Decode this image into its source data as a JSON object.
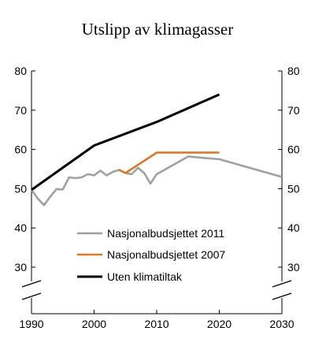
{
  "chart_data": {
    "type": "line",
    "title": "Utslipp av klimagasser",
    "xlabel": "",
    "ylabel": "",
    "xlim": [
      1990,
      2030
    ],
    "ylim": [
      30,
      80
    ],
    "x_ticks": [
      "1990",
      "2000",
      "2010",
      "2020",
      "2030"
    ],
    "y_ticks": [
      "30",
      "40",
      "50",
      "60",
      "70",
      "80"
    ],
    "axis_break": "lower y-axis break below 30 on both sides",
    "grid": false,
    "legend_position": "lower-center",
    "series": [
      {
        "name": "Nasjonalbudsjettet 2011",
        "color": "#a0a0a0",
        "x": [
          1990,
          1991,
          1992,
          1993,
          1994,
          1995,
          1996,
          1997,
          1998,
          1999,
          2000,
          2001,
          2002,
          2003,
          2004,
          2005,
          2006,
          2007,
          2008,
          2009,
          2010,
          2015,
          2020,
          2030
        ],
        "y": [
          49.7,
          47.5,
          45.8,
          48.0,
          49.9,
          49.8,
          52.9,
          52.7,
          52.9,
          53.7,
          53.4,
          54.6,
          53.4,
          54.3,
          54.8,
          54.0,
          53.7,
          55.3,
          54.0,
          51.3,
          53.7,
          58.2,
          57.5,
          53.0
        ]
      },
      {
        "name": "Nasjonalbudsjettet 2007",
        "color": "#d97a2b",
        "x": [
          2004,
          2005,
          2010,
          2020
        ],
        "y": [
          54.8,
          54.0,
          59.2,
          59.2
        ]
      },
      {
        "name": "Uten klimatiltak",
        "color": "#000000",
        "x": [
          1990,
          2000,
          2010,
          2020
        ],
        "y": [
          49.7,
          61.0,
          67.0,
          74.0
        ]
      }
    ]
  }
}
